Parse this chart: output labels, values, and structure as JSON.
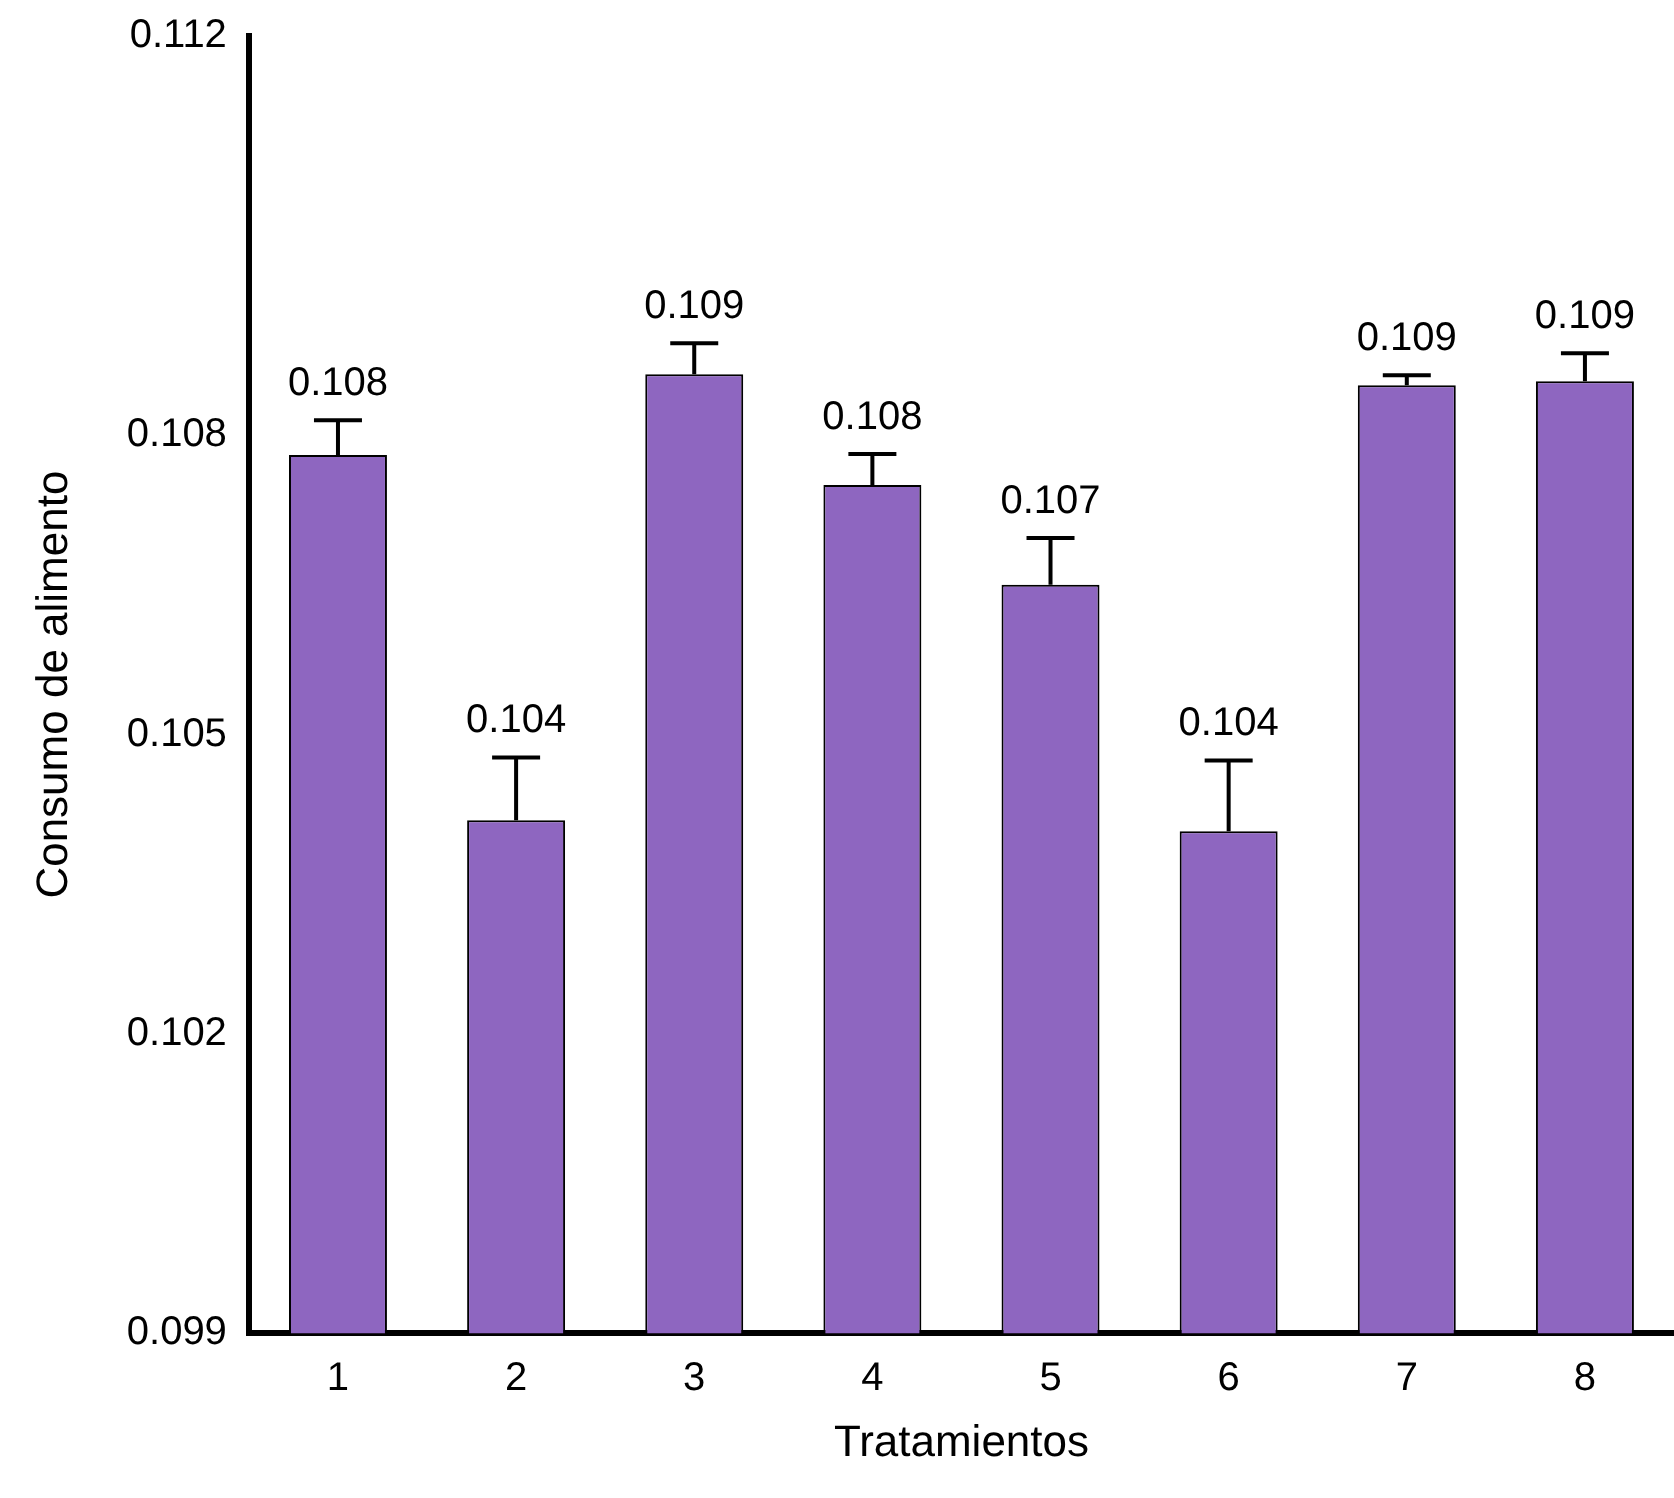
{
  "chart_data": {
    "type": "bar",
    "xlabel": "Tratamientos",
    "ylabel": "Consumo de alimento",
    "categories": [
      "1",
      "2",
      "3",
      "4",
      "5",
      "6",
      "7",
      "8"
    ],
    "series": [
      {
        "color": "#8e66c0",
        "values": [
          0.1078,
          0.10414,
          0.10861,
          0.1075,
          0.1065,
          0.10403,
          0.1085,
          0.10854
        ],
        "errors": [
          [
            0.1078,
            0.10815
          ],
          [
            0.10414,
            0.10477
          ],
          [
            0.10861,
            0.10892
          ],
          [
            0.1075,
            0.10781
          ],
          [
            0.1065,
            0.10697
          ],
          [
            0.10403,
            0.10474
          ],
          [
            0.1085,
            0.1086
          ],
          [
            0.10854,
            0.10882
          ]
        ],
        "value_labels": [
          "0.108",
          "0.104",
          "0.109",
          "0.108",
          "0.107",
          "0.104",
          "0.109",
          "0.109"
        ]
      }
    ],
    "ylim": [
      0.099,
      0.112
    ],
    "yticks": [
      0.099,
      0.102,
      0.105,
      0.108,
      0.112
    ],
    "grid": false,
    "legend": false
  }
}
